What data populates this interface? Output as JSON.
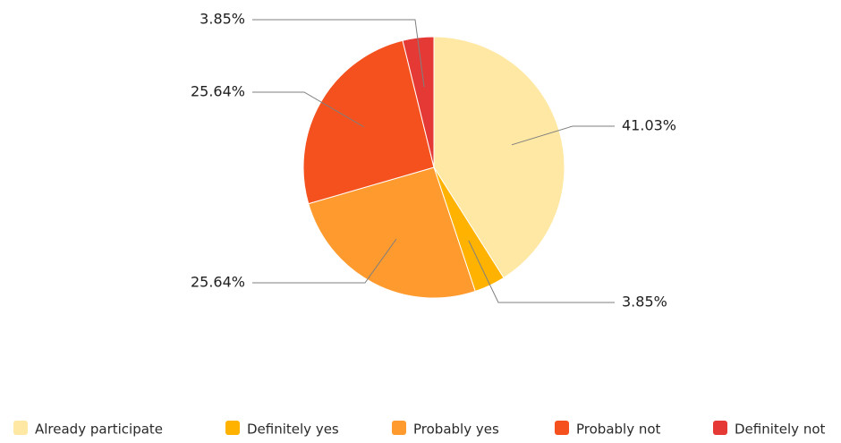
{
  "chart_data": {
    "type": "pie",
    "title": "",
    "categories": [
      "Already participate",
      "Definitely yes",
      "Probably yes",
      "Probably not",
      "Definitely not"
    ],
    "values": [
      41.03,
      3.85,
      25.64,
      25.64,
      3.85
    ],
    "labels": [
      "41.03%",
      "3.85%",
      "25.64%",
      "25.64%",
      "3.85%"
    ],
    "colors": [
      "#FFE8A3",
      "#FFB300",
      "#FF9A2E",
      "#F4511E",
      "#E53935"
    ],
    "legend_position": "bottom",
    "label_style": "outside with leader lines"
  }
}
